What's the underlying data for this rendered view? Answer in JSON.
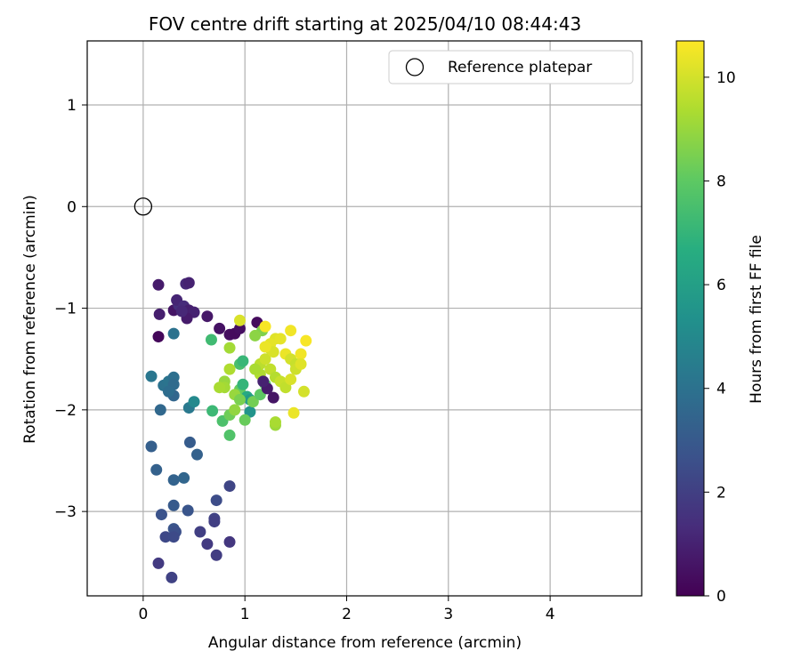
{
  "chart_data": {
    "type": "scatter",
    "title": "FOV centre drift starting at 2025/04/10 08:44:43",
    "xlabel": "Angular distance from reference (arcmin)",
    "ylabel": "Rotation from reference (arcmin)",
    "xlim": [
      -0.55,
      4.9
    ],
    "ylim": [
      -3.83,
      1.63
    ],
    "xticks": [
      0,
      1,
      2,
      3,
      4
    ],
    "yticks": [
      -3,
      -2,
      -1,
      0,
      1
    ],
    "grid": true,
    "legend": {
      "position": "top-right",
      "entries": [
        "Reference platepar"
      ]
    },
    "reference_point": {
      "label": "Reference platepar",
      "x": 0,
      "y": 0
    },
    "colorbar": {
      "label": "Hours from first FF file",
      "colormap": "viridis",
      "range": [
        0,
        10.7
      ],
      "ticks": [
        0,
        2,
        4,
        6,
        8,
        10
      ]
    },
    "points": [
      [
        0.15,
        -0.77,
        0.8
      ],
      [
        0.42,
        -0.76,
        1.2
      ],
      [
        0.45,
        -0.75,
        1.0
      ],
      [
        0.16,
        -1.06,
        0.9
      ],
      [
        0.3,
        -1.02,
        0.6
      ],
      [
        0.35,
        -0.97,
        1.4
      ],
      [
        0.33,
        -0.92,
        1.1
      ],
      [
        0.4,
        -0.98,
        1.3
      ],
      [
        0.45,
        -1.02,
        0.9
      ],
      [
        0.5,
        -1.04,
        1.0
      ],
      [
        0.43,
        -1.1,
        0.8
      ],
      [
        0.38,
        -1.03,
        1.2
      ],
      [
        0.63,
        -1.08,
        0.7
      ],
      [
        0.75,
        -1.2,
        0.5
      ],
      [
        0.85,
        -1.26,
        0.4
      ],
      [
        0.9,
        -1.25,
        0.3
      ],
      [
        1.12,
        -1.14,
        0.3
      ],
      [
        0.95,
        -1.2,
        0.4
      ],
      [
        0.15,
        -1.28,
        0.2
      ],
      [
        0.3,
        -1.25,
        4.0
      ],
      [
        0.67,
        -1.31,
        7.3
      ],
      [
        0.85,
        -1.39,
        9.2
      ],
      [
        1.17,
        -1.22,
        8.6
      ],
      [
        1.1,
        -1.27,
        8.8
      ],
      [
        0.95,
        -1.12,
        10.1
      ],
      [
        0.08,
        -1.67,
        4.2
      ],
      [
        0.2,
        -1.76,
        4.0
      ],
      [
        0.25,
        -1.72,
        4.1
      ],
      [
        0.3,
        -1.68,
        3.9
      ],
      [
        0.3,
        -1.75,
        3.7
      ],
      [
        0.3,
        -1.86,
        3.5
      ],
      [
        0.25,
        -1.82,
        3.8
      ],
      [
        0.17,
        -2.0,
        3.6
      ],
      [
        0.45,
        -1.98,
        4.3
      ],
      [
        0.5,
        -1.92,
        5.0
      ],
      [
        0.68,
        -2.01,
        7.2
      ],
      [
        0.78,
        -2.11,
        7.6
      ],
      [
        0.85,
        -2.25,
        7.7
      ],
      [
        0.95,
        -1.55,
        7.5
      ],
      [
        0.98,
        -1.52,
        7.1
      ],
      [
        0.95,
        -1.8,
        8.1
      ],
      [
        1.02,
        -1.87,
        6.5
      ],
      [
        1.05,
        -1.9,
        5.8
      ],
      [
        0.98,
        -1.75,
        7.0
      ],
      [
        1.05,
        -2.02,
        5.5
      ],
      [
        0.85,
        -2.05,
        8.3
      ],
      [
        0.9,
        -2.0,
        8.9
      ],
      [
        1.0,
        -2.1,
        8.2
      ],
      [
        1.08,
        -1.92,
        8.4
      ],
      [
        1.15,
        -1.85,
        8.0
      ],
      [
        1.2,
        -1.75,
        7.8
      ],
      [
        0.8,
        -1.72,
        9.0
      ],
      [
        0.8,
        -1.78,
        9.2
      ],
      [
        0.85,
        -1.6,
        9.4
      ],
      [
        0.9,
        -1.85,
        9.0
      ],
      [
        0.95,
        -1.9,
        8.5
      ],
      [
        0.75,
        -1.78,
        9.3
      ],
      [
        1.25,
        -1.4,
        10.0
      ],
      [
        1.3,
        -1.3,
        10.2
      ],
      [
        1.35,
        -1.3,
        10.3
      ],
      [
        1.4,
        -1.45,
        10.4
      ],
      [
        1.45,
        -1.5,
        10.0
      ],
      [
        1.5,
        -1.55,
        9.8
      ],
      [
        1.55,
        -1.45,
        10.5
      ],
      [
        1.6,
        -1.32,
        10.6
      ],
      [
        1.45,
        -1.22,
        10.5
      ],
      [
        1.2,
        -1.18,
        10.6
      ],
      [
        1.15,
        -1.55,
        9.6
      ],
      [
        1.15,
        -1.65,
        9.4
      ],
      [
        1.2,
        -1.5,
        9.9
      ],
      [
        1.25,
        -1.6,
        9.7
      ],
      [
        1.3,
        -1.68,
        9.5
      ],
      [
        1.35,
        -1.72,
        9.8
      ],
      [
        1.4,
        -1.78,
        9.7
      ],
      [
        1.45,
        -1.7,
        10.1
      ],
      [
        1.5,
        -1.6,
        9.9
      ],
      [
        1.55,
        -1.55,
        10.2
      ],
      [
        1.58,
        -1.82,
        10.0
      ],
      [
        1.48,
        -2.03,
        10.4
      ],
      [
        1.3,
        -2.15,
        9.1
      ],
      [
        1.3,
        -2.12,
        9.3
      ],
      [
        1.25,
        -1.35,
        10.3
      ],
      [
        1.28,
        -1.43,
        10.1
      ],
      [
        1.1,
        -1.6,
        9.3
      ],
      [
        1.2,
        -1.38,
        10.4
      ],
      [
        1.22,
        -1.79,
        0.8
      ],
      [
        1.28,
        -1.88,
        0.6
      ],
      [
        1.18,
        -1.72,
        1.0
      ],
      [
        0.08,
        -2.36,
        3.2
      ],
      [
        0.13,
        -2.59,
        3.3
      ],
      [
        0.3,
        -2.69,
        3.4
      ],
      [
        0.4,
        -2.67,
        3.5
      ],
      [
        0.46,
        -2.32,
        3.1
      ],
      [
        0.53,
        -2.44,
        3.3
      ],
      [
        0.3,
        -2.94,
        3.0
      ],
      [
        0.44,
        -2.99,
        2.8
      ],
      [
        0.18,
        -3.03,
        2.7
      ],
      [
        0.72,
        -2.89,
        2.5
      ],
      [
        0.85,
        -2.75,
        2.2
      ],
      [
        0.7,
        -3.07,
        2.1
      ],
      [
        0.7,
        -3.1,
        2.0
      ],
      [
        0.22,
        -3.25,
        2.3
      ],
      [
        0.3,
        -3.17,
        2.8
      ],
      [
        0.32,
        -3.2,
        2.6
      ],
      [
        0.3,
        -3.25,
        2.4
      ],
      [
        0.56,
        -3.2,
        2.0
      ],
      [
        0.63,
        -3.32,
        1.8
      ],
      [
        0.72,
        -3.43,
        1.9
      ],
      [
        0.85,
        -3.3,
        1.7
      ],
      [
        0.15,
        -3.51,
        1.8
      ],
      [
        0.28,
        -3.65,
        2.1
      ]
    ]
  }
}
